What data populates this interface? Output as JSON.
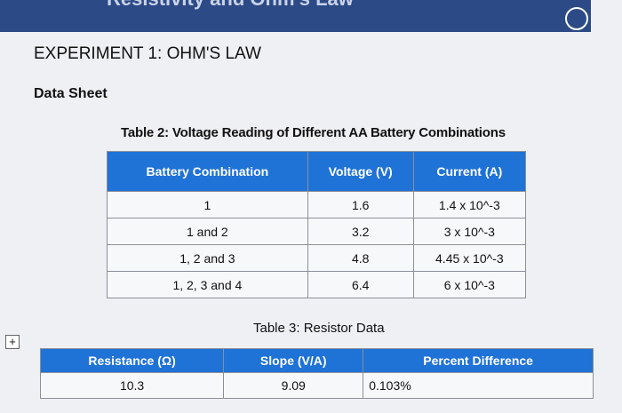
{
  "header": {
    "title": "Resistivity and Ohm's Law"
  },
  "heading": "EXPERIMENT 1: OHM'S LAW",
  "subheading": "Data Sheet",
  "table2": {
    "caption": "Table 2: Voltage Reading of Different AA Battery Combinations",
    "columns": [
      "Battery Combination",
      "Voltage (V)",
      "Current (A)"
    ],
    "rows": [
      [
        "1",
        "1.6",
        "1.4 x 10^-3"
      ],
      [
        "1 and 2",
        "3.2",
        "3 x 10^-3"
      ],
      [
        "1, 2 and 3",
        "4.8",
        "4.45 x 10^-3"
      ],
      [
        "1, 2, 3 and 4",
        "6.4",
        "6 x 10^-3"
      ]
    ]
  },
  "table3": {
    "caption": "Table 3: Resistor Data",
    "columns": [
      "Resistance (Ω)",
      "Slope (V/A)",
      "Percent Difference"
    ],
    "rows": [
      [
        "10.3",
        "9.09",
        "0.103%"
      ]
    ]
  }
}
